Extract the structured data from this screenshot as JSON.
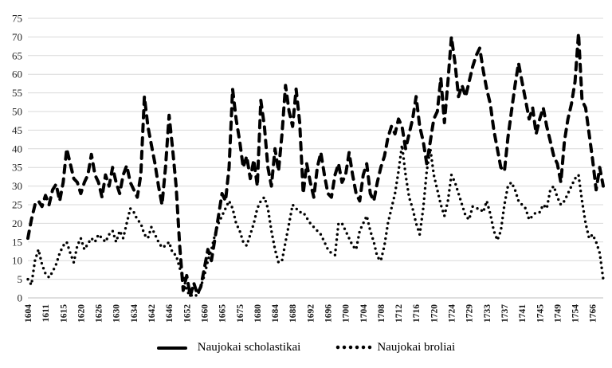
{
  "chart_data": {
    "type": "line",
    "title": "",
    "xlabel": "",
    "ylabel": "",
    "grid": true,
    "grid_color": "#d9d9d9",
    "background_color": "#ffffff",
    "legend_position": "bottom",
    "y_axis": {
      "min": 0,
      "max": 75,
      "step": 5
    },
    "x_tick_labels": [
      "1604",
      "1611",
      "1615",
      "1620",
      "1626",
      "1630",
      "1634",
      "1642",
      "1646",
      "1652",
      "1660",
      "1665",
      "1675",
      "1680",
      "1684",
      "1688",
      "1692",
      "1696",
      "1700",
      "1704",
      "1708",
      "1712",
      "1716",
      "1720",
      "1724",
      "1729",
      "1733",
      "1737",
      "1741",
      "1745",
      "1749",
      "1754",
      "1766"
    ],
    "x_label_every_n_points": 5,
    "series": [
      {
        "name": "Naujokai scholastikai",
        "line_style": "thick-dash",
        "color": "#000000",
        "values": [
          16,
          21,
          25,
          26,
          24.5,
          27.5,
          25,
          29,
          30.5,
          26,
          31,
          40,
          36,
          32,
          31,
          28,
          31,
          33,
          38.5,
          33,
          31,
          27,
          33,
          30,
          35,
          31,
          28,
          33,
          35.5,
          31,
          29,
          27,
          33,
          54,
          46,
          41,
          36,
          30,
          25,
          35,
          49,
          40,
          30,
          14,
          2,
          6,
          0.5,
          4,
          1,
          3,
          8,
          13,
          10,
          16,
          22,
          28,
          26,
          35,
          56,
          48,
          42,
          35,
          38,
          32,
          37,
          30,
          53,
          46,
          35,
          30,
          40,
          34,
          44,
          57,
          50,
          46,
          56,
          47,
          28,
          36,
          31,
          27,
          35,
          39,
          33,
          28,
          27,
          33,
          36,
          31,
          33,
          39,
          33,
          28,
          26,
          33,
          36,
          28,
          26,
          31,
          35,
          38,
          43,
          46,
          44,
          48,
          46,
          40,
          44,
          48,
          54,
          46,
          42,
          36,
          42,
          48,
          50,
          59,
          47,
          58,
          70,
          63,
          54,
          57,
          54,
          58,
          62,
          65,
          67,
          61,
          56,
          52,
          45,
          40,
          35,
          34,
          43,
          50,
          57,
          63,
          58,
          53,
          48,
          51,
          44,
          48,
          51,
          46,
          42,
          38,
          36,
          31,
          42,
          48,
          52,
          58,
          71,
          53,
          51,
          44,
          37,
          29,
          35,
          30
        ]
      },
      {
        "name": "Naujokai broliai",
        "line_style": "dotted",
        "color": "#000000",
        "values": [
          5,
          3.5,
          10,
          13,
          9,
          6.5,
          5.5,
          7,
          9,
          12,
          14,
          15,
          12,
          9.5,
          14,
          16,
          13,
          14.5,
          16,
          15,
          17,
          16,
          15,
          17,
          18,
          15,
          18,
          16,
          20,
          24,
          23,
          21,
          20,
          17,
          16,
          19,
          17,
          15,
          13.5,
          14,
          15,
          12,
          11.5,
          8,
          6,
          2,
          0.5,
          1,
          0.5,
          3,
          6,
          10,
          13,
          17,
          20,
          22,
          24,
          26,
          24,
          20,
          18,
          15,
          14,
          17,
          20,
          24,
          26,
          27,
          24,
          18,
          13,
          9.5,
          10,
          15,
          20,
          25,
          24,
          23,
          23,
          21.5,
          20,
          19,
          18,
          17,
          15,
          13,
          12,
          11.5,
          20,
          20,
          18,
          16,
          14,
          13,
          18,
          20,
          22,
          18,
          15,
          11,
          10,
          14,
          20,
          24,
          28,
          34,
          41,
          33,
          27,
          24,
          20,
          17,
          24,
          34,
          40,
          33,
          29,
          25,
          22,
          26,
          33,
          31,
          28,
          25,
          22,
          21,
          24.5,
          24,
          24,
          23,
          26,
          22.5,
          18,
          15.5,
          18,
          25,
          30,
          31,
          29,
          26,
          25,
          24,
          21,
          22,
          23,
          23,
          25,
          24,
          29,
          30,
          27,
          25,
          26,
          28,
          30,
          32,
          33,
          26,
          20,
          16,
          17,
          15,
          12,
          5
        ]
      }
    ]
  },
  "legend": {
    "items": [
      {
        "label": "Naujokai scholastikai",
        "marker": "thick-dash-sample"
      },
      {
        "label": "Naujokai broliai",
        "marker": "dots-sample"
      }
    ]
  }
}
